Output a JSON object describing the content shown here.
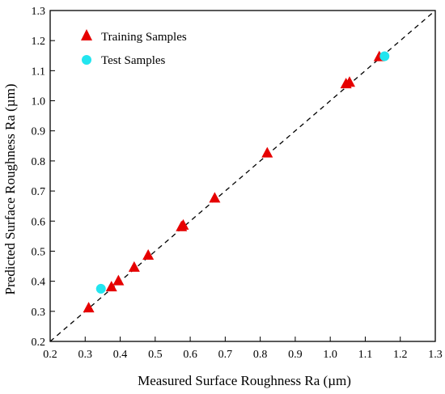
{
  "chart_data": {
    "type": "scatter",
    "xlabel": "Measured Surface Roughness Ra (µm)",
    "ylabel": "Predicted Surface Roughness Ra (µm)",
    "xlim": [
      0.2,
      1.3
    ],
    "ylim": [
      0.2,
      1.3
    ],
    "xticks": [
      "0.2",
      "0.3",
      "0.4",
      "0.5",
      "0.6",
      "0.7",
      "0.8",
      "0.9",
      "1.0",
      "1.1",
      "1.2",
      "1.3"
    ],
    "yticks": [
      "0.2",
      "0.3",
      "0.4",
      "0.5",
      "0.6",
      "0.7",
      "0.8",
      "0.9",
      "1.0",
      "1.1",
      "1.2",
      "1.3"
    ],
    "reference_line": {
      "style": "dashed",
      "x": [
        0.2,
        1.3
      ],
      "y": [
        0.2,
        1.3
      ]
    },
    "legend_position": "top-left",
    "series": [
      {
        "name": "Training Samples",
        "marker": "triangle",
        "color": "#e60000",
        "x": [
          0.31,
          0.375,
          0.395,
          0.44,
          0.48,
          0.575,
          0.58,
          0.67,
          0.82,
          1.045,
          1.055,
          1.14
        ],
        "y": [
          0.31,
          0.38,
          0.4,
          0.445,
          0.485,
          0.58,
          0.585,
          0.675,
          0.825,
          1.055,
          1.06,
          1.145
        ]
      },
      {
        "name": "Test Samples",
        "marker": "circle",
        "color": "#22e5ef",
        "x": [
          0.345,
          1.155
        ],
        "y": [
          0.375,
          1.148
        ]
      }
    ]
  }
}
